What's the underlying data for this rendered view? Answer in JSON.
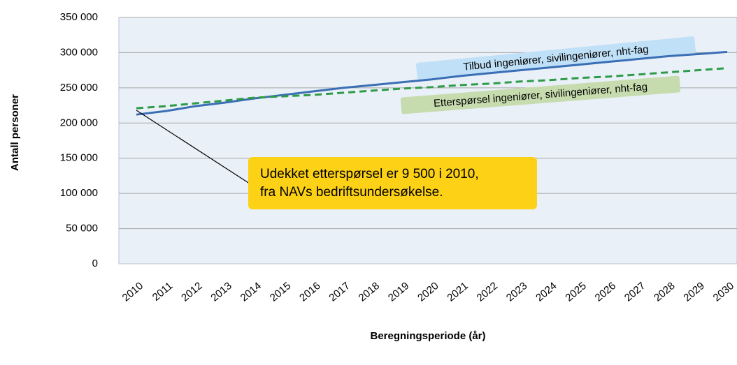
{
  "chart_data": {
    "type": "line",
    "x_label": "Beregningsperiode (år)",
    "y_label": "Antall personer",
    "categories": [
      "2010",
      "2011",
      "2012",
      "2013",
      "2014",
      "2015",
      "2016",
      "2017",
      "2018",
      "2019",
      "2020",
      "2021",
      "2022",
      "2023",
      "2024",
      "2025",
      "2026",
      "2027",
      "2028",
      "2029",
      "2030"
    ],
    "series": [
      {
        "name": "Tilbud ingeniører, sivilingeniører, nht-fag",
        "color": "#3a6eb5",
        "dashed": false,
        "values": [
          212000,
          217000,
          224000,
          229000,
          235000,
          240000,
          245000,
          250000,
          254000,
          258000,
          262000,
          267000,
          271000,
          275000,
          279000,
          283000,
          287000,
          291000,
          295000,
          298000,
          301000
        ]
      },
      {
        "name": "Etterspørsel ingeniører, sivilingeniører, nht-fag",
        "color": "#2e9b47",
        "dashed": true,
        "values": [
          221000,
          224000,
          228000,
          232000,
          236000,
          238000,
          240000,
          243000,
          246000,
          249000,
          251000,
          254000,
          256000,
          259000,
          261000,
          264000,
          266000,
          269000,
          272000,
          275000,
          278000
        ]
      }
    ],
    "annotation": "Udekket etterspørsel er 9 500 i 2010,\nfra NAVs bedriftsundersøkelse.",
    "ylim": [
      0,
      350000
    ],
    "yticks": [
      {
        "value": 0,
        "label": "0"
      },
      {
        "value": 50000,
        "label": "50 000"
      },
      {
        "value": 100000,
        "label": "100 000"
      },
      {
        "value": 150000,
        "label": "150 000"
      },
      {
        "value": 200000,
        "label": "200 000"
      },
      {
        "value": 250000,
        "label": "250 000"
      },
      {
        "value": 300000,
        "label": "300 000"
      },
      {
        "value": 350000,
        "label": "350 000"
      }
    ],
    "grid": true
  }
}
